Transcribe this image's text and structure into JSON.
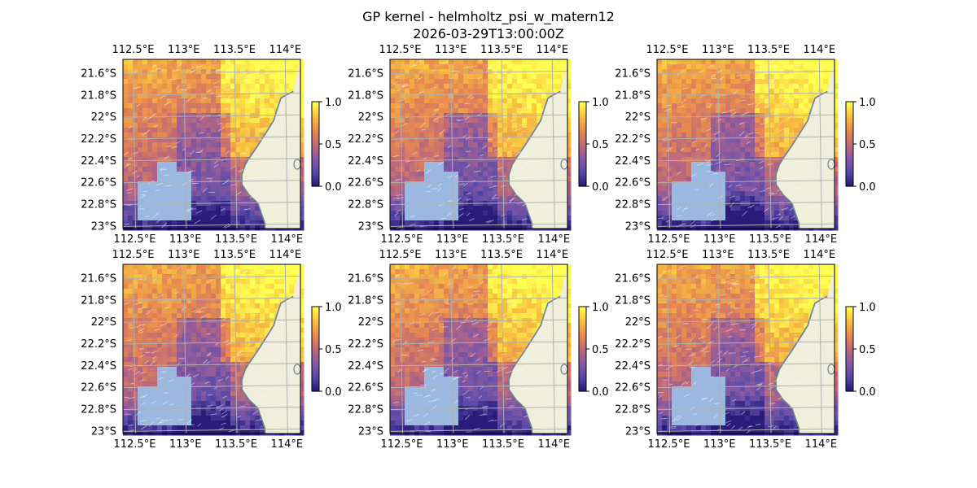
{
  "figure": {
    "title_line1": "GP kernel - helmholtz_psi_w_matern12",
    "title_line2": "2026-03-29T13:00:00Z"
  },
  "map_axes": {
    "lon_ticks": [
      "112.5°E",
      "113°E",
      "113.5°E",
      "114°E"
    ],
    "lat_ticks": [
      "21.6°S",
      "21.8°S",
      "22°S",
      "22.2°S",
      "22.4°S",
      "22.6°S",
      "22.8°S",
      "23°S"
    ],
    "lon_tick_values": [
      112.5,
      113.0,
      113.5,
      114.0
    ],
    "lat_tick_values": [
      -21.6,
      -21.8,
      -22.0,
      -22.2,
      -22.4,
      -22.6,
      -22.8,
      -23.0
    ],
    "extent": {
      "lon_min": 112.4,
      "lon_max": 114.15,
      "lat_min": -23.02,
      "lat_max": -21.47
    }
  },
  "colorbar": {
    "ticks": [
      "0.0",
      "0.5",
      "1.0"
    ],
    "colormap": "RdYlBu_r-like",
    "colors": [
      "#2a1a7a",
      "#5a4aa8",
      "#8a5aa0",
      "#c06a78",
      "#e88a50",
      "#f8c040",
      "#ffff50"
    ]
  },
  "colors": {
    "ocean_mask": "#9bb8e0",
    "land": "#efefdc",
    "coast": "#6a7f98",
    "grid": "#b0b0b0"
  },
  "panels": [
    {
      "id": "panel-1"
    },
    {
      "id": "panel-2"
    },
    {
      "id": "panel-3"
    },
    {
      "id": "panel-4"
    },
    {
      "id": "panel-5"
    },
    {
      "id": "panel-6"
    }
  ]
}
